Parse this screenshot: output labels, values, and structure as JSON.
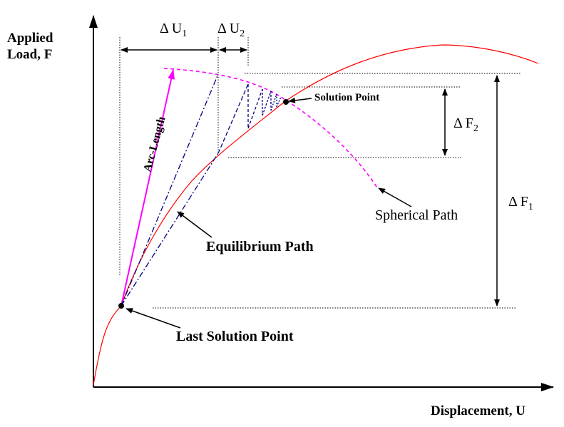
{
  "axes": {
    "y_label_line1": "Applied",
    "y_label_line2": "Load, F",
    "x_label": "Displacement, U"
  },
  "labels": {
    "delta_u1_sym": "Δ U",
    "delta_u1_sub": "1",
    "delta_u2_sym": "Δ U",
    "delta_u2_sub": "2",
    "delta_f1_sym": "Δ F",
    "delta_f1_sub": "1",
    "delta_f2_sym": "Δ F",
    "delta_f2_sub": "2",
    "arc_length": "Arc-Length",
    "solution_point": "Solution Point",
    "spherical_path": "Spherical Path",
    "equilibrium_path": "Equilibrium Path",
    "last_solution_point": "Last Solution Point"
  },
  "colors": {
    "equilibrium_curve": "#ff0000",
    "spherical_path": "#ff00ff",
    "arc_length_vector": "#ff00ff",
    "iteration_lines": "#000080",
    "axes": "#000000"
  }
}
